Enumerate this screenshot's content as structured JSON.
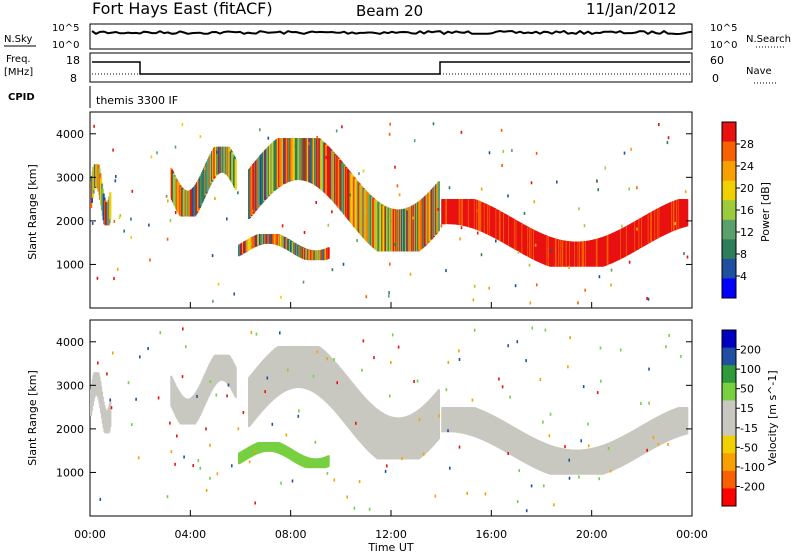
{
  "header": {
    "station": "Fort Hays East (fitACF)",
    "beam": "Beam 20",
    "date": "11/Jan/2012"
  },
  "status_panel": {
    "nsky_label": "N.Sky",
    "nsearch_label": "N.Search",
    "freq_label": "Freq.",
    "freq_unit": "[MHz]",
    "nave_label": "Nave",
    "cpid_label": "CPID",
    "cpid_value": "themis 3300 IF",
    "noise_ticks": [
      "10^5",
      "10^0"
    ],
    "freq_ticks": [
      "18",
      "8"
    ],
    "nave_ticks": [
      "60",
      "0"
    ]
  },
  "time_axis": {
    "label": "Time UT",
    "ticks": [
      "00:00",
      "04:00",
      "08:00",
      "12:00",
      "16:00",
      "20:00",
      "00:00"
    ]
  },
  "chart_data": [
    {
      "type": "heatmap",
      "title": "",
      "xlabel": "Time UT",
      "ylabel": "Slant Range [km]",
      "ylim": [
        0,
        4500
      ],
      "y_ticks": [
        "1000",
        "2000",
        "3000",
        "4000"
      ],
      "colorbar": {
        "label": "Power [dB]",
        "ticks": [
          "28",
          "24",
          "20",
          "16",
          "12",
          "8",
          "4"
        ],
        "colors": [
          "#0000ff",
          "#1f4fa0",
          "#2e7d5a",
          "#5aa06a",
          "#9ccc3c",
          "#f0d000",
          "#f8a000",
          "#f86000",
          "#e81010"
        ]
      },
      "regions": [
        {
          "t0": 0.0,
          "t1": 0.8,
          "r0": 1900,
          "r1": 3300,
          "level": "mixed-high"
        },
        {
          "t0": 3.2,
          "t1": 5.8,
          "r0": 2100,
          "r1": 3700,
          "level": "mixed"
        },
        {
          "t0": 5.9,
          "t1": 9.5,
          "r0": 1100,
          "r1": 1700,
          "level": "mixed-high"
        },
        {
          "t0": 6.3,
          "t1": 13.9,
          "r0": 1300,
          "r1": 3900,
          "level": "band"
        },
        {
          "t0": 14.0,
          "t1": 23.8,
          "r0": 950,
          "r1": 2500,
          "level": "high"
        }
      ]
    },
    {
      "type": "heatmap",
      "title": "",
      "xlabel": "Time UT",
      "ylabel": "Slant Range [km]",
      "ylim": [
        0,
        4500
      ],
      "y_ticks": [
        "1000",
        "2000",
        "3000",
        "4000"
      ],
      "colorbar": {
        "label": "Velocity [m s^-1]",
        "ticks": [
          "200",
          "100",
          "50",
          "15",
          "-15",
          "-50",
          "-100",
          "-200"
        ],
        "colors": [
          "#ff0000",
          "#f86000",
          "#f8a000",
          "#f0d000",
          "#c8c8c0",
          "#c8c8c0",
          "#78d040",
          "#2e9a3a",
          "#1f4fa0",
          "#0000c0"
        ]
      },
      "regions": [
        {
          "t0": 0.0,
          "t1": 0.8,
          "r0": 1900,
          "r1": 3300,
          "class": "ground-scatter"
        },
        {
          "t0": 3.2,
          "t1": 5.8,
          "r0": 2100,
          "r1": 3700,
          "class": "ground-scatter"
        },
        {
          "t0": 5.9,
          "t1": 9.5,
          "r0": 1100,
          "r1": 1700,
          "class": "positive-50-100"
        },
        {
          "t0": 6.3,
          "t1": 13.9,
          "r0": 1300,
          "r1": 3900,
          "class": "ground-scatter"
        },
        {
          "t0": 14.0,
          "t1": 23.8,
          "r0": 950,
          "r1": 2500,
          "class": "ground-scatter"
        }
      ]
    }
  ],
  "colors": {
    "ground_scatter": "#c8c8c0",
    "frame": "#000000",
    "background": "#ffffff"
  }
}
